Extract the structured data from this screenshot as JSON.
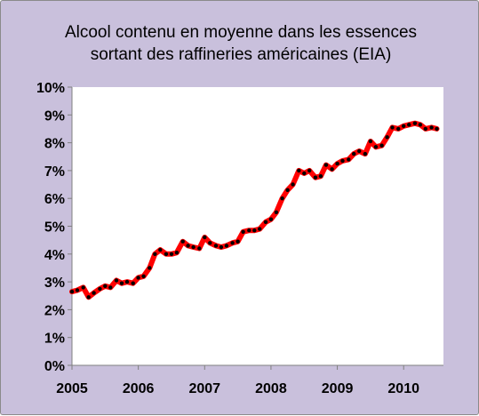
{
  "chart_data": {
    "type": "line",
    "title_lines": [
      "Alcool contenu en moyenne dans les essences",
      "sortant des raffineries américaines (EIA)"
    ],
    "xlabel": "",
    "ylabel": "",
    "ylim": [
      0,
      10
    ],
    "xlim": [
      2005.0,
      2010.6
    ],
    "y_ticks": [
      {
        "value": 0,
        "label": "0%"
      },
      {
        "value": 1,
        "label": "1%"
      },
      {
        "value": 2,
        "label": "2%"
      },
      {
        "value": 3,
        "label": "3%"
      },
      {
        "value": 4,
        "label": "4%"
      },
      {
        "value": 5,
        "label": "5%"
      },
      {
        "value": 6,
        "label": "6%"
      },
      {
        "value": 7,
        "label": "7%"
      },
      {
        "value": 8,
        "label": "8%"
      },
      {
        "value": 9,
        "label": "9%"
      },
      {
        "value": 10,
        "label": "10%"
      }
    ],
    "x_ticks": [
      {
        "value": 2005,
        "label": "2005"
      },
      {
        "value": 2006,
        "label": "2006"
      },
      {
        "value": 2007,
        "label": "2007"
      },
      {
        "value": 2008,
        "label": "2008"
      },
      {
        "value": 2009,
        "label": "2009"
      },
      {
        "value": 2010,
        "label": "2010"
      }
    ],
    "grid": false,
    "legend": "none",
    "series": [
      {
        "color": "#ff0000",
        "marker_color": "#000000",
        "x": [
          2005.0,
          2005.08,
          2005.17,
          2005.25,
          2005.33,
          2005.42,
          2005.5,
          2005.58,
          2005.67,
          2005.75,
          2005.83,
          2005.92,
          2006.0,
          2006.08,
          2006.17,
          2006.25,
          2006.33,
          2006.42,
          2006.5,
          2006.58,
          2006.67,
          2006.75,
          2006.83,
          2006.92,
          2007.0,
          2007.08,
          2007.17,
          2007.25,
          2007.33,
          2007.42,
          2007.5,
          2007.58,
          2007.67,
          2007.75,
          2007.83,
          2007.92,
          2008.0,
          2008.08,
          2008.17,
          2008.25,
          2008.33,
          2008.42,
          2008.5,
          2008.58,
          2008.67,
          2008.75,
          2008.83,
          2008.92,
          2009.0,
          2009.08,
          2009.17,
          2009.25,
          2009.33,
          2009.42,
          2009.5,
          2009.58,
          2009.67,
          2009.75,
          2009.83,
          2009.92,
          2010.0,
          2010.08,
          2010.17,
          2010.25,
          2010.33,
          2010.42,
          2010.5
        ],
        "values": [
          2.65,
          2.7,
          2.8,
          2.45,
          2.6,
          2.75,
          2.85,
          2.8,
          3.05,
          2.95,
          3.0,
          2.95,
          3.15,
          3.2,
          3.5,
          4.0,
          4.15,
          4.0,
          4.0,
          4.05,
          4.45,
          4.3,
          4.25,
          4.2,
          4.6,
          4.4,
          4.3,
          4.25,
          4.3,
          4.4,
          4.45,
          4.8,
          4.85,
          4.85,
          4.9,
          5.15,
          5.25,
          5.5,
          6.0,
          6.3,
          6.5,
          7.0,
          6.9,
          7.0,
          6.75,
          6.8,
          7.2,
          7.05,
          7.25,
          7.35,
          7.4,
          7.6,
          7.7,
          7.6,
          8.05,
          7.85,
          7.9,
          8.2,
          8.55,
          8.5,
          8.6,
          8.65,
          8.7,
          8.65,
          8.5,
          8.55,
          8.5
        ]
      }
    ]
  },
  "colors": {
    "outer_background": "#c9c0dc",
    "plot_background": "#ffffff",
    "axis": "#808080"
  }
}
